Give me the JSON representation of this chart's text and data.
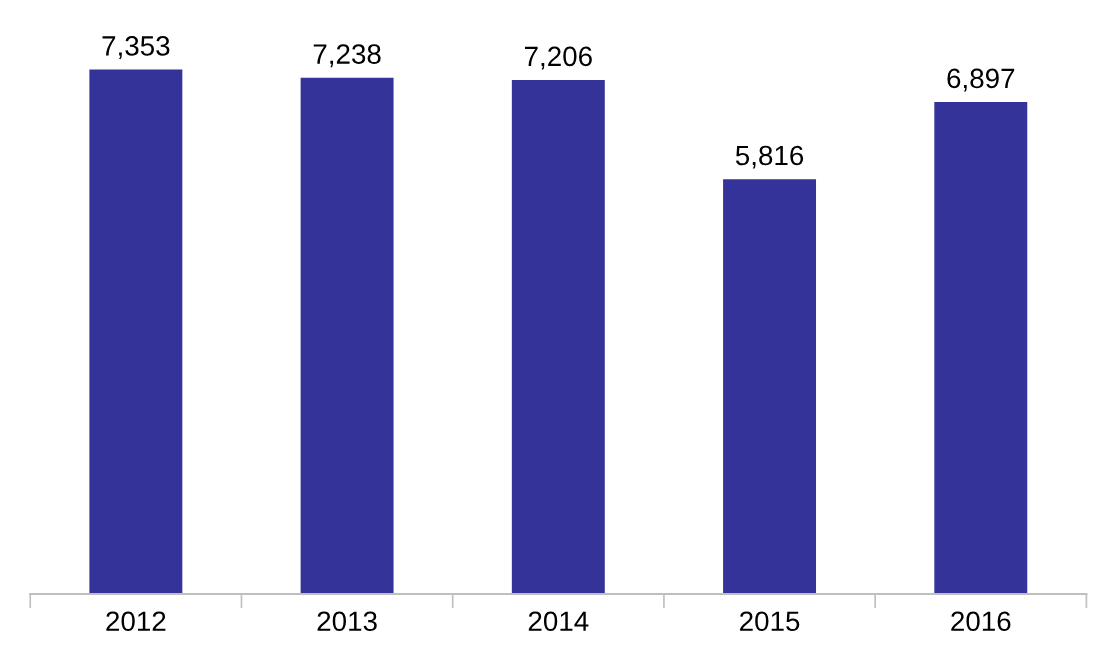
{
  "chart_data": {
    "type": "bar",
    "categories": [
      "2012",
      "2013",
      "2014",
      "2015",
      "2016"
    ],
    "values": [
      7353,
      7238,
      7206,
      5816,
      6897
    ],
    "color": "#333399",
    "value_labels": [
      "7,353",
      "7,238",
      "7,206",
      "5,816",
      "6,897"
    ],
    "grid": false,
    "legend": false
  }
}
